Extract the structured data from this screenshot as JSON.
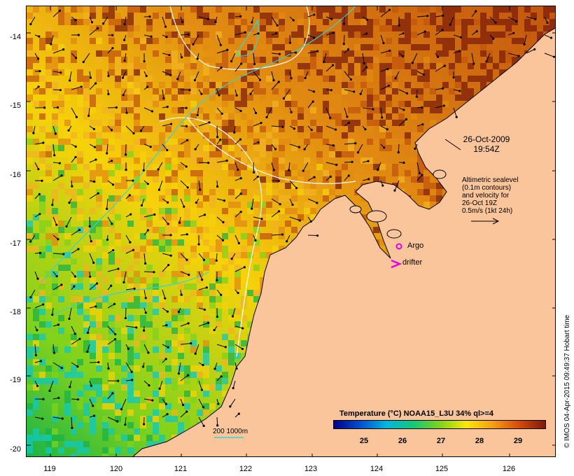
{
  "map": {
    "y_axis_labels": [
      "-14",
      "-15",
      "-16",
      "-17",
      "-18",
      "-19",
      "-20"
    ],
    "x_axis_labels": [
      "119",
      "120",
      "121",
      "122",
      "123",
      "124",
      "125",
      "126"
    ],
    "land_color": "#fbc59b",
    "sst_colors": [
      "#7d1d0a",
      "#c2550c",
      "#e18a12",
      "#f2b322",
      "#f6d20a",
      "#7fd21c",
      "#19b347",
      "#0fc8c0"
    ]
  },
  "annotations": {
    "date": "26-Oct-2009",
    "time": "19:54Z",
    "alt_line1": "Altimetric sealevel",
    "alt_line2": "(0.1m contours)",
    "alt_line3": "and velocity for",
    "alt_line4": "26-Oct 19Z",
    "alt_line5": "0.5m/s (1kt 24h)",
    "argo": "Argo",
    "drifter": "drifter",
    "contour_legend": "200  1000m"
  },
  "colorbar": {
    "title": "Temperature (°C) NOAA15_L3U 34% ql>=4",
    "ticks": [
      "25",
      "26",
      "27",
      "28",
      "29"
    ],
    "colors": [
      "#00008b",
      "#0050d0",
      "#00b7e0",
      "#13c879",
      "#7fd21c",
      "#f6e80a",
      "#f4a016",
      "#d64b0c",
      "#7d1a08"
    ]
  },
  "credit": "© IMOS 04-Apr-2015 09:49:37 Hobart time"
}
